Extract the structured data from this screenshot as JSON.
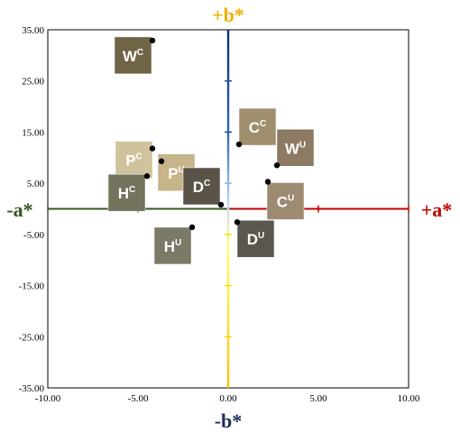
{
  "chart_data": {
    "type": "scatter",
    "xlim": [
      -10,
      10
    ],
    "ylim": [
      -35,
      35
    ],
    "x_ticks": [
      -10,
      -5,
      0,
      5,
      10
    ],
    "y_ticks": [
      35,
      25,
      15,
      5,
      -5,
      -15,
      -25,
      -35
    ],
    "x_tick_labels": [
      "-10.00",
      "-5.00",
      "0.00",
      "5.00",
      "10.00"
    ],
    "y_tick_labels": [
      "35.00",
      "25.00",
      "15.00",
      "5.00",
      "-5.00",
      "-15.00",
      "-25.00",
      "-35.00"
    ],
    "grid": false,
    "axis_end_labels": {
      "pos_a": "+a*",
      "neg_a": "-a*",
      "pos_b": "+b*",
      "neg_b": "-b*"
    },
    "colors": {
      "pos_a": "#c00000",
      "neg_a": "#375623",
      "pos_b": "#f2b100",
      "neg_b": "#1f2d5a",
      "b_axis_top": "#0b2a7a",
      "b_axis_mid": "#9dc3e6",
      "b_axis_bottom": "#ffd700"
    },
    "points": [
      {
        "label": "W",
        "sup": "C",
        "x": -4.2,
        "y": 32.9,
        "swatch": "#6f6446"
      },
      {
        "label": "P",
        "sup": "C",
        "x": -4.2,
        "y": 11.8,
        "swatch": "#cfc39b"
      },
      {
        "label": "P",
        "sup": "U",
        "x": -3.7,
        "y": 9.3,
        "swatch": "#c6b48a"
      },
      {
        "label": "C",
        "sup": "C",
        "x": 0.6,
        "y": 12.6,
        "swatch": "#a08f6e"
      },
      {
        "label": "W",
        "sup": "U",
        "x": 2.7,
        "y": 8.5,
        "swatch": "#8c7a62"
      },
      {
        "label": "H",
        "sup": "C",
        "x": -4.5,
        "y": 6.4,
        "swatch": "#73735e"
      },
      {
        "label": "D",
        "sup": "C",
        "x": -0.4,
        "y": 0.8,
        "swatch": "#5a5448"
      },
      {
        "label": "C",
        "sup": "U",
        "x": 2.2,
        "y": 5.3,
        "swatch": "#9c8a72"
      },
      {
        "label": "D",
        "sup": "U",
        "x": 0.5,
        "y": -2.6,
        "swatch": "#5b5650"
      },
      {
        "label": "H",
        "sup": "U",
        "x": -2.0,
        "y": -3.6,
        "swatch": "#7c7a66"
      }
    ]
  }
}
